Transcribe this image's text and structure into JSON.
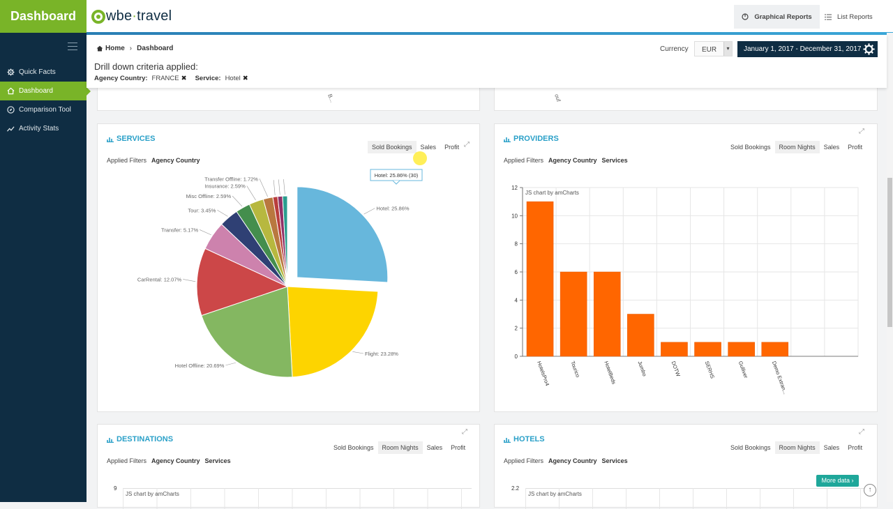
{
  "sidebar": {
    "brand": "Dashboard",
    "items": [
      {
        "label": "Quick Facts",
        "icon": "gear-icon"
      },
      {
        "label": "Dashboard",
        "icon": "home-icon"
      },
      {
        "label": "Comparison Tool",
        "icon": "compass-icon"
      },
      {
        "label": "Activity Stats",
        "icon": "trend-icon"
      }
    ],
    "active_index": 1
  },
  "topbar": {
    "logo_text_1": "wbe",
    "logo_dot": "·",
    "logo_text_2": "travel",
    "graphical_reports": "Graphical Reports",
    "list_reports": "List Reports"
  },
  "header": {
    "breadcrumb_home": "Home",
    "breadcrumb_current": "Dashboard",
    "drill_title": "Drill down criteria applied:",
    "filter_1_label": "Agency Country:",
    "filter_1_value": "FRANCE",
    "filter_2_label": "Service:",
    "filter_2_value": "Hotel",
    "currency_label": "Currency",
    "currency_value": "EUR",
    "date_range": "January 1, 2017 - December 31, 2017"
  },
  "panels": {
    "services": {
      "title": "SERVICES",
      "tabs": [
        "Sold Bookings",
        "Sales",
        "Profit"
      ],
      "subtabs": [
        "Applied Filters",
        "Agency Country"
      ],
      "tooltip": "Hotel: 25.86% (30)"
    },
    "providers": {
      "title": "PROVIDERS",
      "tabs": [
        "Sold Bookings",
        "Room Nights",
        "Sales",
        "Profit"
      ],
      "subtabs": [
        "Applied Filters",
        "Agency Country",
        "Services"
      ],
      "credit": "JS chart by amCharts"
    },
    "destinations": {
      "title": "DESTINATIONS",
      "tabs": [
        "Sold Bookings",
        "Room Nights",
        "Sales",
        "Profit"
      ],
      "subtabs": [
        "Applied Filters",
        "Agency Country",
        "Services"
      ],
      "credit": "JS chart by amCharts",
      "y_top": "9"
    },
    "hotels": {
      "title": "HOTELS",
      "tabs": [
        "Sold Bookings",
        "Room Nights",
        "Sales",
        "Profit"
      ],
      "subtabs": [
        "Applied Filters",
        "Agency Country",
        "Services"
      ],
      "credit": "JS chart by amCharts",
      "y_top": "2.2",
      "more_button": "More data"
    }
  },
  "chart_data": [
    {
      "type": "pie",
      "title": "SERVICES",
      "slices": [
        {
          "label": "Hotel",
          "value": 25.86,
          "color": "#67b7dc",
          "pulled": true
        },
        {
          "label": "Flight",
          "value": 23.28,
          "color": "#fdd400"
        },
        {
          "label": "Hotel Offline",
          "value": 20.69,
          "color": "#84b761"
        },
        {
          "label": "CarRental",
          "value": 12.07,
          "color": "#cc4748"
        },
        {
          "label": "Transfer",
          "value": 5.17,
          "color": "#cd82ad"
        },
        {
          "label": "Tour",
          "value": 3.45,
          "color": "#2f4074"
        },
        {
          "label": "Misc Offline",
          "value": 2.59,
          "color": "#448e4d"
        },
        {
          "label": "Insurance",
          "value": 2.59,
          "color": "#b7b83f"
        },
        {
          "label": "Transfer Offline",
          "value": 1.72,
          "color": "#b9783f"
        },
        {
          "label": "",
          "value": 0.86,
          "color": "#b93e3d"
        },
        {
          "label": "",
          "value": 0.86,
          "color": "#913167"
        },
        {
          "label": "",
          "value": 0.86,
          "color": "#2a9d8f"
        }
      ],
      "labels_shown": [
        "Hotel: 25.86%",
        "Flight: 23.28%",
        "Hotel Offline: 20.69%",
        "CarRental: 12.07%",
        "Transfer: 5.17%",
        "Tour: 3.45%",
        "Misc Offline: 2.59%",
        "Insurance: 2.59%",
        "Transfer Offline: 1.72%"
      ]
    },
    {
      "type": "bar",
      "title": "PROVIDERS",
      "categories": [
        "HotelsPro4",
        "Tourico",
        "HotelBeds",
        "Jumbo",
        "DOTW",
        "SERHS",
        "Gulliver",
        "Demo Extran..."
      ],
      "values": [
        11,
        6,
        6,
        3,
        1,
        1,
        1,
        1
      ],
      "ylim": [
        0,
        12
      ],
      "yticks": [
        0,
        2,
        4,
        6,
        8,
        10,
        12
      ],
      "color": "#ff6600"
    }
  ]
}
